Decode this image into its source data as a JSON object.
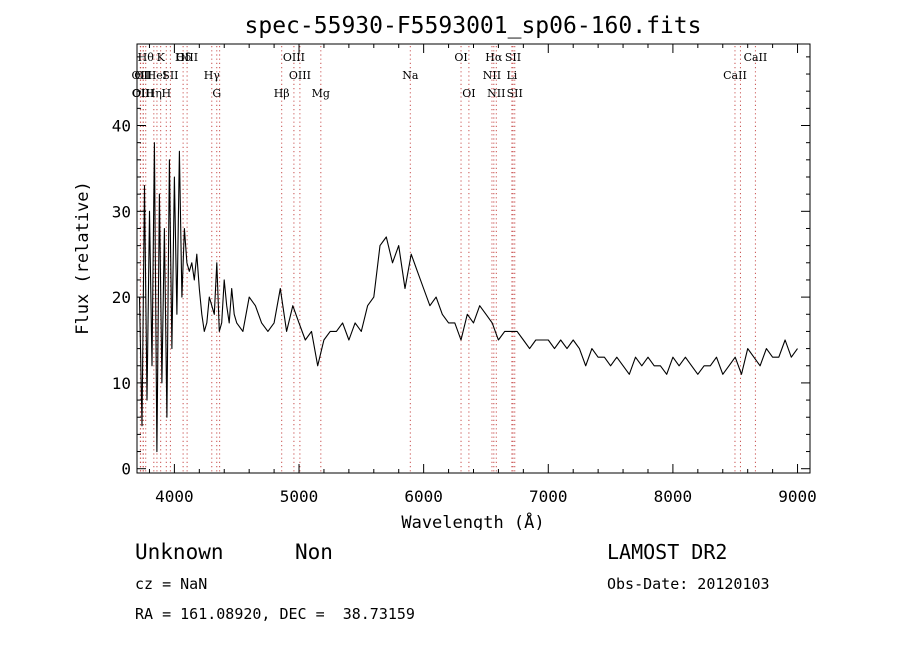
{
  "chart_data": {
    "type": "line",
    "title": "spec-55930-F5593001_sp06-160.fits",
    "xlabel": "Wavelength (Å)",
    "ylabel": "Flux (relative)",
    "xlim": [
      3700,
      9100
    ],
    "ylim": [
      -0.5,
      49.5
    ],
    "x_ticks": [
      4000,
      5000,
      6000,
      7000,
      8000,
      9000
    ],
    "y_ticks": [
      0,
      10,
      20,
      30,
      40
    ],
    "grid": false,
    "line_color": "#000000",
    "marker_color": "#c8504f",
    "series": [
      {
        "x": [
          3720,
          3740,
          3760,
          3780,
          3800,
          3820,
          3840,
          3860,
          3880,
          3900,
          3920,
          3940,
          3960,
          3980,
          4000,
          4020,
          4040,
          4060,
          4080,
          4100,
          4120,
          4140,
          4160,
          4180,
          4200,
          4220,
          4240,
          4260,
          4280,
          4300,
          4320,
          4340,
          4360,
          4380,
          4400,
          4420,
          4440,
          4460,
          4480,
          4500,
          4550,
          4600,
          4650,
          4700,
          4750,
          4800,
          4850,
          4900,
          4950,
          5000,
          5050,
          5100,
          5150,
          5200,
          5250,
          5300,
          5350,
          5400,
          5450,
          5500,
          5550,
          5600,
          5650,
          5700,
          5750,
          5800,
          5850,
          5900,
          5950,
          6000,
          6050,
          6100,
          6150,
          6200,
          6250,
          6300,
          6350,
          6400,
          6450,
          6500,
          6550,
          6600,
          6650,
          6700,
          6750,
          6800,
          6850,
          6900,
          6950,
          7000,
          7050,
          7100,
          7150,
          7200,
          7250,
          7300,
          7350,
          7400,
          7450,
          7500,
          7550,
          7600,
          7650,
          7700,
          7750,
          7800,
          7850,
          7900,
          7950,
          8000,
          8050,
          8100,
          8150,
          8200,
          8250,
          8300,
          8350,
          8400,
          8450,
          8500,
          8550,
          8600,
          8650,
          8700,
          8750,
          8800,
          8850,
          8900,
          8950,
          9000
        ],
        "y": [
          20,
          5,
          33,
          8,
          30,
          12,
          38,
          2,
          32,
          10,
          28,
          6,
          36,
          14,
          34,
          18,
          37,
          20,
          28,
          24,
          23,
          24,
          22,
          25,
          21,
          18,
          16,
          17,
          20,
          19,
          18,
          24,
          16,
          17,
          22,
          19,
          17,
          21,
          18,
          17,
          16,
          20,
          19,
          17,
          16,
          17,
          21,
          16,
          19,
          17,
          15,
          16,
          12,
          15,
          16,
          16,
          17,
          15,
          17,
          16,
          19,
          20,
          26,
          27,
          24,
          26,
          21,
          25,
          23,
          21,
          19,
          20,
          18,
          17,
          17,
          15,
          18,
          17,
          19,
          18,
          17,
          15,
          16,
          16,
          16,
          15,
          14,
          15,
          15,
          15,
          14,
          15,
          14,
          15,
          14,
          12,
          14,
          13,
          13,
          12,
          13,
          12,
          11,
          13,
          12,
          13,
          12,
          12,
          11,
          13,
          12,
          13,
          12,
          11,
          12,
          12,
          13,
          11,
          12,
          13,
          11,
          14,
          13,
          12,
          14,
          13,
          13,
          15,
          13,
          14
        ]
      }
    ],
    "line_markers": [
      {
        "x": 3727,
        "label": "OII",
        "row": 2
      },
      {
        "x": 3729,
        "label": "OII",
        "row": 3
      },
      {
        "x": 3750,
        "label": "OII",
        "row": 2
      },
      {
        "x": 3750,
        "label": "OIII",
        "row": 3
      },
      {
        "x": 3770,
        "label": "Hθ",
        "row": 1
      },
      {
        "x": 3835,
        "label": "Hη",
        "row": 3
      },
      {
        "x": 3860,
        "label": "HeI",
        "row": 2
      },
      {
        "x": 3890,
        "label": "K",
        "row": 1
      },
      {
        "x": 3935,
        "label": "H",
        "row": 3
      },
      {
        "x": 3968,
        "label": "SII",
        "row": 2
      },
      {
        "x": 4070,
        "label": "Hδ",
        "row": 1
      },
      {
        "x": 4102,
        "label": "OIII",
        "row": 1
      },
      {
        "x": 4300,
        "label": "Hγ",
        "row": 2
      },
      {
        "x": 4340,
        "label": "G",
        "row": 3
      },
      {
        "x": 4363,
        "label": "",
        "row": 0
      },
      {
        "x": 4861,
        "label": "Hβ",
        "row": 3
      },
      {
        "x": 4959,
        "label": "OIII",
        "row": 1
      },
      {
        "x": 5007,
        "label": "OIII",
        "row": 2
      },
      {
        "x": 5175,
        "label": "Mg",
        "row": 3
      },
      {
        "x": 5893,
        "label": "Na",
        "row": 2
      },
      {
        "x": 6300,
        "label": "OI",
        "row": 1
      },
      {
        "x": 6363,
        "label": "OI",
        "row": 3
      },
      {
        "x": 6548,
        "label": "NII",
        "row": 2
      },
      {
        "x": 6563,
        "label": "Hα",
        "row": 1
      },
      {
        "x": 6583,
        "label": "NII",
        "row": 3
      },
      {
        "x": 6708,
        "label": "Li",
        "row": 2
      },
      {
        "x": 6717,
        "label": "SII",
        "row": 1
      },
      {
        "x": 6731,
        "label": "SII",
        "row": 3
      },
      {
        "x": 8498,
        "label": "CaII",
        "row": 2
      },
      {
        "x": 8542,
        "label": "",
        "row": 0
      },
      {
        "x": 8662,
        "label": "CaII",
        "row": 1
      }
    ]
  },
  "footer": {
    "object_class": "Unknown",
    "subclass": "Non",
    "cz": "cz = NaN",
    "coords": "RA = 161.08920, DEC =  38.73159",
    "survey": "LAMOST DR2",
    "obs_date": "Obs-Date: 20120103"
  }
}
